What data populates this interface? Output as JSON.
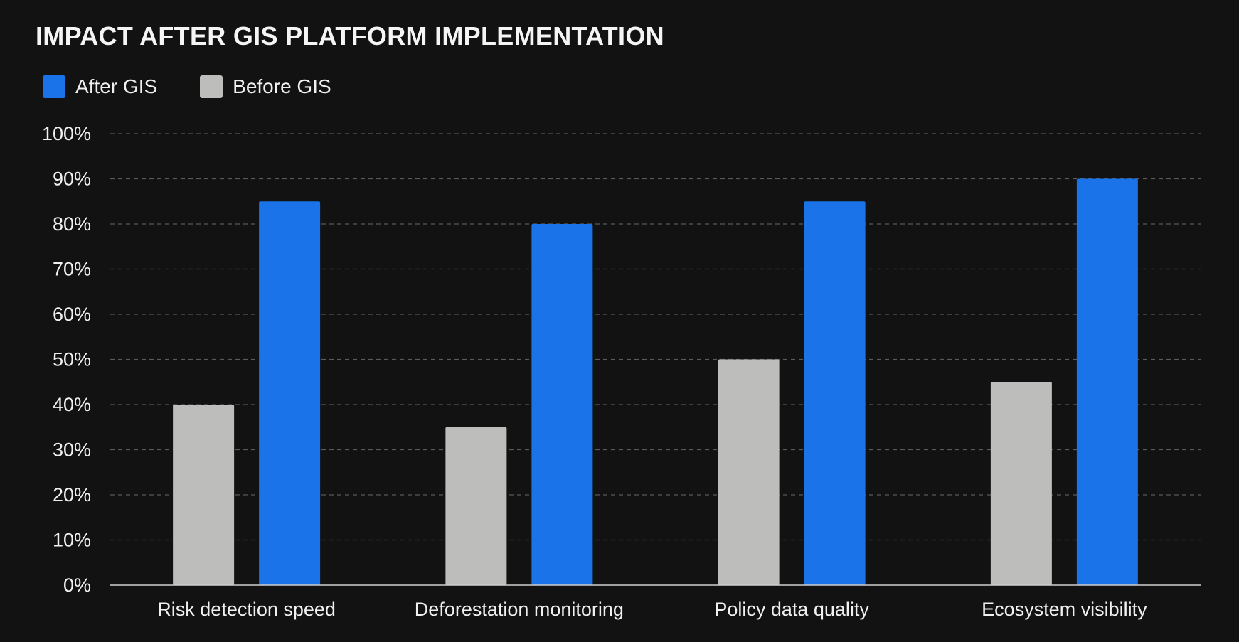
{
  "chart_data": {
    "type": "bar",
    "title": "IMPACT AFTER GIS PLATFORM IMPLEMENTATION",
    "categories": [
      "Risk detection speed",
      "Deforestation monitoring",
      "Policy data quality",
      "Ecosystem visibility"
    ],
    "series": [
      {
        "name": "Before GIS",
        "color": "#bdbdbb",
        "values": [
          40,
          35,
          50,
          45
        ]
      },
      {
        "name": "After GIS",
        "color": "#1a73e8",
        "values": [
          85,
          80,
          85,
          90
        ]
      }
    ],
    "legend": [
      "After GIS",
      "Before GIS"
    ],
    "ylim": [
      0,
      100
    ],
    "yticks": [
      "0%",
      "10%",
      "20%",
      "30%",
      "40%",
      "50%",
      "60%",
      "70%",
      "80%",
      "90%",
      "100%"
    ],
    "grid": true,
    "legend_position": "top-left"
  }
}
